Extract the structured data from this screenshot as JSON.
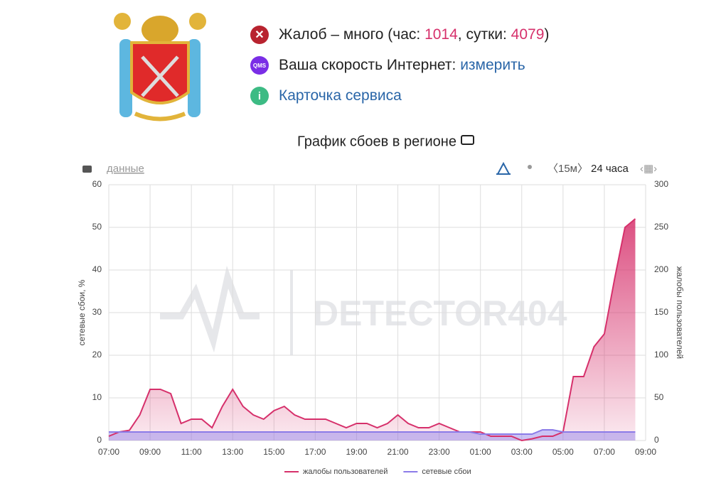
{
  "header": {
    "status": {
      "prefix": "Жалоб – много (час: ",
      "hour": "1014",
      "mid": ", сутки: ",
      "day": "4079",
      "suffix": ")"
    },
    "speed": {
      "label": "Ваша скорость Интернет: ",
      "link": "измерить"
    },
    "card": "Карточка сервиса",
    "qms_icon": "QMS",
    "info_icon": "i"
  },
  "toolbar": {
    "data_link": "данные",
    "interval": "〈15м〉",
    "period": "24 часа"
  },
  "watermark": "DETECTOR404",
  "chart_data": {
    "type": "area",
    "title": "График сбоев в регионе",
    "ylabel": "сетевые сбои, %",
    "y2label": "жалобы пользователей",
    "categories": [
      "07:00",
      null,
      null,
      null,
      "09:00",
      null,
      null,
      null,
      "11:00",
      null,
      null,
      null,
      "13:00",
      null,
      null,
      null,
      "15:00",
      null,
      null,
      null,
      "17:00",
      null,
      null,
      null,
      "19:00",
      null,
      null,
      null,
      "21:00",
      null,
      null,
      null,
      "23:00",
      null,
      null,
      null,
      "01:00",
      null,
      null,
      null,
      "03:00",
      null,
      null,
      null,
      "05:00",
      null,
      null,
      null,
      "07:00",
      null,
      null,
      null,
      "09:00"
    ],
    "series": [
      {
        "name": "жалобы пользователей",
        "color": "#d6306b",
        "axis": "y2",
        "values": [
          5,
          10,
          12,
          30,
          60,
          60,
          55,
          20,
          25,
          25,
          15,
          40,
          60,
          40,
          30,
          25,
          35,
          40,
          30,
          25,
          25,
          25,
          20,
          15,
          20,
          20,
          15,
          20,
          30,
          20,
          15,
          15,
          20,
          15,
          10,
          10,
          10,
          5,
          5,
          5,
          0,
          2,
          5,
          5,
          10,
          75,
          75,
          110,
          125,
          190,
          250,
          260,
          null
        ]
      },
      {
        "name": "сетевые сбои",
        "color": "#8b7be8",
        "values": [
          2,
          2,
          2,
          2,
          2,
          2,
          2,
          2,
          2,
          2,
          2,
          2,
          2,
          2,
          2,
          2,
          2,
          2,
          2,
          2,
          2,
          2,
          2,
          2,
          2,
          2,
          2,
          2,
          2,
          2,
          2,
          2,
          2,
          2,
          2,
          2,
          1.5,
          1.5,
          1.5,
          1.5,
          1.5,
          1.5,
          2.5,
          2.5,
          2,
          2,
          2,
          2,
          2,
          2,
          2,
          2,
          null
        ]
      }
    ],
    "ylim": [
      0,
      60
    ],
    "yticks": [
      0,
      10,
      20,
      30,
      40,
      50,
      60
    ],
    "y2lim": [
      0,
      300
    ],
    "y2ticks": [
      0,
      50,
      100,
      150,
      200,
      250,
      300
    ],
    "grid": true,
    "legend": "bottom"
  }
}
